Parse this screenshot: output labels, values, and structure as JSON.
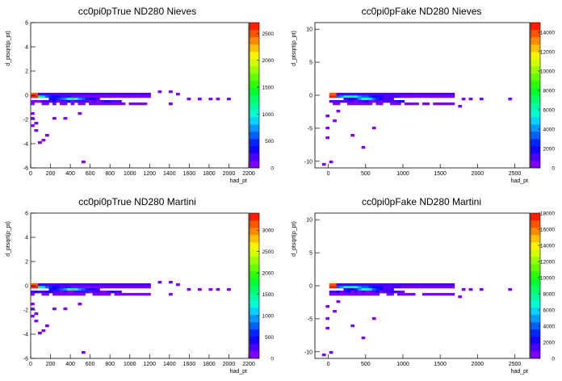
{
  "chart_data": [
    {
      "type": "heatmap",
      "title": "cc0pi0pTrue ND280 Nieves",
      "xlabel": "had_pt",
      "ylabel": "d_ptsqrt(p_pt)",
      "xlim": [
        0,
        2200
      ],
      "ylim": [
        -6,
        6
      ],
      "xticks": [
        0,
        200,
        400,
        600,
        800,
        1000,
        1200,
        1400,
        1600,
        1800,
        2000,
        2200
      ],
      "yticks": [
        -6,
        -4,
        -2,
        0,
        2,
        4,
        6
      ],
      "zlim": [
        0,
        2700
      ],
      "zticks": [
        0,
        500,
        1000,
        1500,
        2000,
        2500
      ],
      "bins": {
        "x": 60,
        "y": 60
      },
      "colorscale": [
        "#7f00ff",
        "#4b00ff",
        "#1400ff",
        "#0026ff",
        "#0060ff",
        "#009aff",
        "#00d4ff",
        "#00ffd0",
        "#00ff9c",
        "#00ff64",
        "#00ff2c",
        "#2cff00",
        "#64ff00",
        "#9cff00",
        "#d4ff00",
        "#fff200",
        "#ffc000",
        "#ff8a00",
        "#ff5400",
        "#ff1e00"
      ]
    },
    {
      "type": "heatmap",
      "title": "cc0pi0pFake ND280 Nieves",
      "xlabel": "had_pt",
      "ylabel": "d_ptsqrt(p_pt)",
      "xlim": [
        -180,
        2700
      ],
      "ylim": [
        -11,
        11
      ],
      "xticks": [
        0,
        500,
        1000,
        1500,
        2000,
        2500
      ],
      "yticks": [
        -10,
        -5,
        0,
        5,
        10
      ],
      "zlim": [
        0,
        15000
      ],
      "zticks": [
        0,
        2000,
        4000,
        6000,
        8000,
        10000,
        12000,
        14000
      ],
      "bins": {
        "x": 60,
        "y": 60
      },
      "colorscale": [
        "#7f00ff",
        "#4b00ff",
        "#1400ff",
        "#0026ff",
        "#0060ff",
        "#009aff",
        "#00d4ff",
        "#00ffd0",
        "#00ff9c",
        "#00ff64",
        "#00ff2c",
        "#2cff00",
        "#64ff00",
        "#9cff00",
        "#d4ff00",
        "#fff200",
        "#ffc000",
        "#ff8a00",
        "#ff5400",
        "#ff1e00"
      ]
    },
    {
      "type": "heatmap",
      "title": "cc0pi0pTrue ND280 Martini",
      "xlabel": "had_pt",
      "ylabel": "d_ptsqrt(p_pt)",
      "xlim": [
        0,
        2200
      ],
      "ylim": [
        -6,
        6
      ],
      "xticks": [
        0,
        200,
        400,
        600,
        800,
        1000,
        1200,
        1400,
        1600,
        1800,
        2000,
        2200
      ],
      "yticks": [
        -6,
        -4,
        -2,
        0,
        2,
        4,
        6
      ],
      "zlim": [
        0,
        3400
      ],
      "zticks": [
        0,
        500,
        1000,
        1500,
        2000,
        2500,
        3000
      ],
      "bins": {
        "x": 60,
        "y": 60
      },
      "colorscale": [
        "#7f00ff",
        "#4b00ff",
        "#1400ff",
        "#0026ff",
        "#0060ff",
        "#009aff",
        "#00d4ff",
        "#00ffd0",
        "#00ff9c",
        "#00ff64",
        "#00ff2c",
        "#2cff00",
        "#64ff00",
        "#9cff00",
        "#d4ff00",
        "#fff200",
        "#ffc000",
        "#ff8a00",
        "#ff5400",
        "#ff1e00"
      ]
    },
    {
      "type": "heatmap",
      "title": "cc0pi0pFake ND280 Martini",
      "xlabel": "had_pt",
      "ylabel": "d_ptsqrt(p_pt)",
      "xlim": [
        -180,
        2700
      ],
      "ylim": [
        -11,
        11
      ],
      "xticks": [
        0,
        500,
        1000,
        1500,
        2000,
        2500
      ],
      "yticks": [
        -10,
        -5,
        0,
        5,
        10
      ],
      "zlim": [
        0,
        18000
      ],
      "zticks": [
        0,
        2000,
        4000,
        6000,
        8000,
        10000,
        12000,
        14000,
        16000,
        18000
      ],
      "bins": {
        "x": 60,
        "y": 60
      },
      "colorscale": [
        "#7f00ff",
        "#4b00ff",
        "#1400ff",
        "#0026ff",
        "#0060ff",
        "#009aff",
        "#00d4ff",
        "#00ffd0",
        "#00ff9c",
        "#00ff64",
        "#00ff2c",
        "#2cff00",
        "#64ff00",
        "#9cff00",
        "#d4ff00",
        "#fff200",
        "#ffc000",
        "#ff8a00",
        "#ff5400",
        "#ff1e00"
      ]
    }
  ]
}
